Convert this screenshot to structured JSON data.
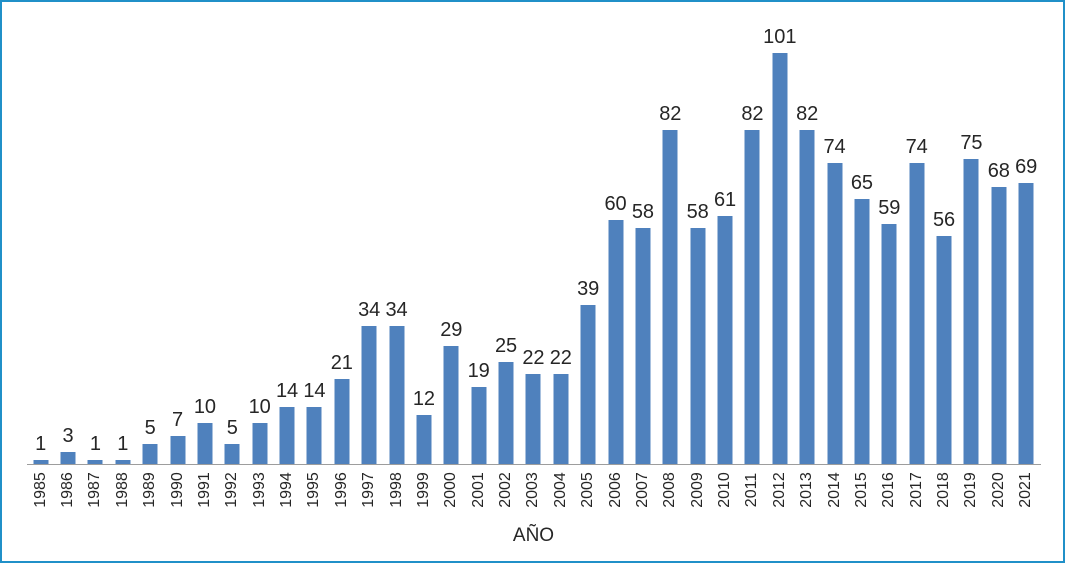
{
  "chart_data": {
    "type": "bar",
    "title": "",
    "xlabel": "AÑO",
    "ylabel": "",
    "categories": [
      "1985",
      "1986",
      "1987",
      "1988",
      "1989",
      "1990",
      "1991",
      "1992",
      "1993",
      "1994",
      "1995",
      "1996",
      "1997",
      "1998",
      "1999",
      "2000",
      "2001",
      "2002",
      "2003",
      "2004",
      "2005",
      "2006",
      "2007",
      "2008",
      "2009",
      "2010",
      "2011",
      "2012",
      "2013",
      "2014",
      "2015",
      "2016",
      "2017",
      "2018",
      "2019",
      "2020",
      "2021"
    ],
    "values": [
      1,
      3,
      1,
      1,
      5,
      7,
      10,
      5,
      10,
      14,
      14,
      21,
      34,
      34,
      12,
      29,
      19,
      25,
      22,
      22,
      39,
      60,
      58,
      82,
      58,
      61,
      82,
      101,
      82,
      74,
      65,
      59,
      74,
      56,
      75,
      68,
      69
    ],
    "data_labels_shown": true,
    "legend": "none",
    "grid": "off",
    "y_axis_shown": false,
    "ylim": [
      0,
      113
    ],
    "colors": {
      "bar": "#4F81BD",
      "axis_line": "#9d9d9d",
      "label_text": "#262626",
      "frame_border": "#2090C8",
      "background": "#ffffff"
    }
  }
}
